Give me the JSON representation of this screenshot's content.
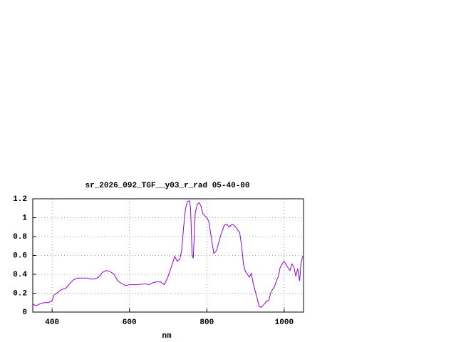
{
  "chart_data": {
    "type": "line",
    "title": "sr_2026_092_TGF__y03_r_rad 05-40-00",
    "x_label": "nm",
    "x": [
      350,
      360,
      370,
      380,
      390,
      400,
      405,
      415,
      425,
      435,
      445,
      455,
      465,
      475,
      490,
      500,
      510,
      520,
      530,
      540,
      550,
      560,
      570,
      580,
      590,
      600,
      620,
      640,
      650,
      660,
      670,
      680,
      690,
      700,
      710,
      717,
      723,
      730,
      735,
      740,
      745,
      750,
      755,
      758,
      762,
      765,
      770,
      775,
      780,
      785,
      790,
      800,
      805,
      812,
      818,
      825,
      835,
      845,
      852,
      858,
      865,
      870,
      875,
      885,
      890,
      895,
      900,
      910,
      915,
      920,
      930,
      935,
      940,
      950,
      955,
      960,
      965,
      970,
      975,
      980,
      985,
      990,
      995,
      1000,
      1005,
      1010,
      1015,
      1020,
      1025,
      1030,
      1035,
      1040,
      1043,
      1047,
      1050
    ],
    "series": [
      {
        "color": "#9400d3",
        "values": [
          0.08,
          0.07,
          0.09,
          0.1,
          0.1,
          0.12,
          0.18,
          0.21,
          0.24,
          0.25,
          0.3,
          0.34,
          0.36,
          0.36,
          0.36,
          0.35,
          0.35,
          0.37,
          0.42,
          0.44,
          0.43,
          0.4,
          0.33,
          0.3,
          0.28,
          0.29,
          0.29,
          0.3,
          0.29,
          0.31,
          0.32,
          0.32,
          0.29,
          0.38,
          0.5,
          0.59,
          0.54,
          0.56,
          0.65,
          0.9,
          1.1,
          1.17,
          1.18,
          1.1,
          0.6,
          0.57,
          1.05,
          1.14,
          1.16,
          1.12,
          1.04,
          1.0,
          0.96,
          0.78,
          0.62,
          0.65,
          0.8,
          0.92,
          0.93,
          0.9,
          0.93,
          0.92,
          0.9,
          0.84,
          0.7,
          0.5,
          0.43,
          0.37,
          0.41,
          0.3,
          0.15,
          0.06,
          0.05,
          0.09,
          0.12,
          0.12,
          0.2,
          0.24,
          0.27,
          0.33,
          0.38,
          0.48,
          0.51,
          0.54,
          0.5,
          0.47,
          0.44,
          0.51,
          0.48,
          0.38,
          0.46,
          0.33,
          0.5,
          0.58,
          0.6
        ]
      }
    ],
    "xlim": [
      350,
      1050
    ],
    "xticks": [
      400,
      600,
      800,
      1000
    ],
    "ylim": [
      0,
      1.2
    ],
    "yticks": [
      0,
      0.2,
      0.4,
      0.6,
      0.8,
      1,
      1.2
    ],
    "grid": true
  }
}
